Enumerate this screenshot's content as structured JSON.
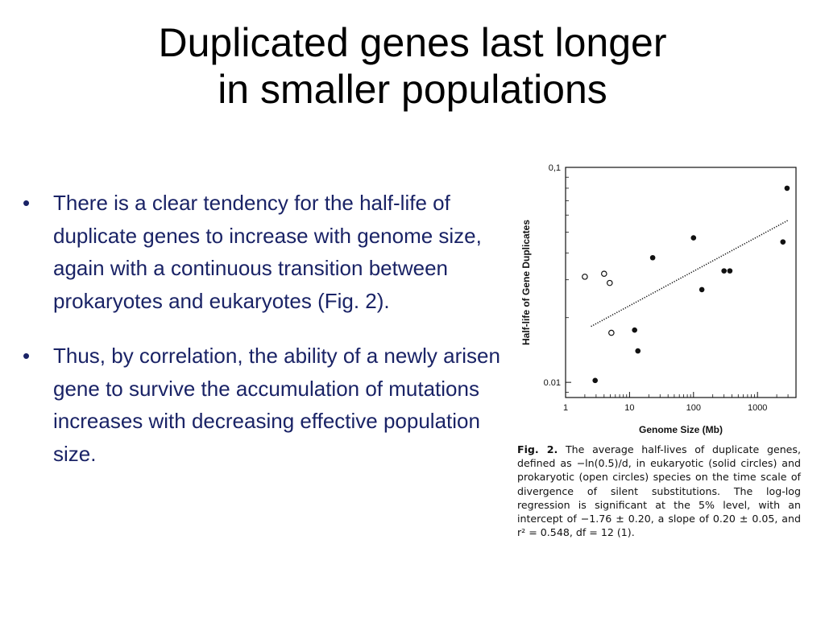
{
  "title": {
    "line1": "Duplicated genes last longer",
    "line2": "in smaller populations"
  },
  "bullets": [
    {
      "marker": "•",
      "text": "There is a clear tendency for the half-life of duplicate genes to increase with genome size, again with a continuous transition between prokaryotes and eukaryotes (Fig. 2)."
    },
    {
      "marker": "•",
      "text": "Thus, by correlation, the ability of a newly arisen gene to survive the accumulation of mutations increases with decreasing effective population size."
    }
  ],
  "figure": {
    "caption_label": "Fig. 2.",
    "caption_text": "The average half-lives of duplicate genes, defined as −ln(0.5)/d, in eukaryotic (solid circles) and prokaryotic (open circles) species on the time scale of divergence of silent substitutions. The log-log regression is significant at the 5% level, with an intercept of −1.76 ± 0.20, a slope of 0.20 ± 0.05, and r² = 0.548, df = 12 (1)."
  },
  "chart_data": {
    "type": "scatter",
    "xlabel": "Genome Size (Mb)",
    "ylabel": "Half-life of Gene Duplicates",
    "xscale": "log",
    "yscale": "log",
    "xlim": [
      1,
      4000
    ],
    "ylim": [
      0.0085,
      0.1
    ],
    "x_ticks": [
      {
        "value": 1,
        "label": "1"
      },
      {
        "value": 10,
        "label": "10"
      },
      {
        "value": 100,
        "label": "100"
      },
      {
        "value": 1000,
        "label": "1000"
      }
    ],
    "y_ticks": [
      {
        "value": 0.01,
        "label": "0.01"
      },
      {
        "value": 0.1,
        "label": "0,1"
      }
    ],
    "grid": false,
    "series": [
      {
        "name": "eukaryotic",
        "marker": "filled",
        "x": [
          2.9,
          12,
          13.5,
          23,
          100,
          135,
          300,
          370,
          2500,
          2900
        ],
        "y": [
          0.0102,
          0.0175,
          0.014,
          0.038,
          0.047,
          0.027,
          0.033,
          0.033,
          0.045,
          0.08
        ]
      },
      {
        "name": "prokaryotic",
        "marker": "open",
        "x": [
          2.0,
          4.0,
          4.9,
          5.2
        ],
        "y": [
          0.031,
          0.032,
          0.029,
          0.017
        ]
      }
    ],
    "regression": {
      "label": "log-log regression",
      "x": [
        2.5,
        3000
      ],
      "y": [
        0.0182,
        0.0567
      ]
    }
  }
}
